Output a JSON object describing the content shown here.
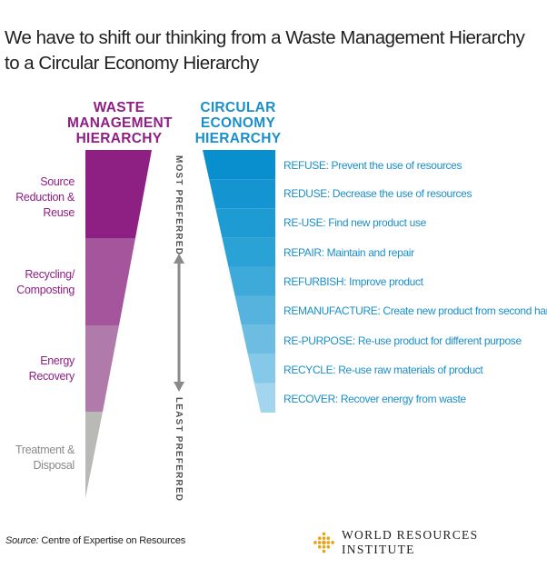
{
  "title": "We have to shift our thinking from a Waste Management Hierarchy to a Circular Economy Hierarchy",
  "waste_hierarchy": {
    "heading": [
      "WASTE",
      "MANAGEMENT",
      "HIERARCHY"
    ],
    "color": "#8e1f83",
    "levels": [
      {
        "label": [
          "Source",
          "Reduction &",
          "Reuse"
        ],
        "color": "#8e1f83"
      },
      {
        "label": [
          "Recycling/",
          "Composting"
        ],
        "color": "#a5559c"
      },
      {
        "label": [
          "Energy",
          "Recovery"
        ],
        "color": "#b07aaa"
      },
      {
        "label": [
          "Treatment &",
          "Disposal"
        ],
        "color": "#b9b9b5"
      }
    ]
  },
  "circular_hierarchy": {
    "heading": [
      "CIRCULAR",
      "ECONOMY",
      "HIERARCHY"
    ],
    "color": "#1a8fc9",
    "levels": [
      {
        "text": "REFUSE: Prevent the use of resources",
        "color": "#0a8fce"
      },
      {
        "text": "REDUSE: Decrease the use of resources",
        "color": "#1495d1"
      },
      {
        "text": "RE-USE: Find new product use",
        "color": "#1f9bd3"
      },
      {
        "text": "REPAIR: Maintain and repair",
        "color": "#2aa2d6"
      },
      {
        "text": "REFURBISH: Improve product",
        "color": "#3eaad9"
      },
      {
        "text": "REMANUFACTURE: Create new product from second hand",
        "color": "#55b3dd"
      },
      {
        "text": "RE-PURPOSE: Re-use product for different purpose",
        "color": "#6dbde2"
      },
      {
        "text": "RECYCLE: Re-use raw materials of product",
        "color": "#86c8e7"
      },
      {
        "text": "RECOVER: Recover energy from waste",
        "color": "#a3d5ee"
      }
    ]
  },
  "axis": {
    "top_label": "MOST PREFERRED",
    "bottom_label": "LEAST PREFERRED",
    "arrow_color": "#8a8a8a"
  },
  "footer": {
    "source_prefix": "Source:",
    "source_text": " Centre of Expertise on Resources",
    "org_name": "WORLD RESOURCES INSTITUTE",
    "logo_color": "#e8a317"
  }
}
